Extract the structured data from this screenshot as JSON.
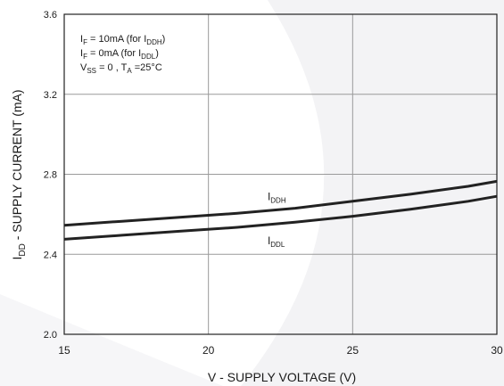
{
  "chart_data": {
    "type": "line",
    "xlabel": "V - SUPPLY VOLTAGE (V)",
    "ylabel": {
      "main": "I",
      "sub": "DD",
      "rest": " - SUPPLY CURRENT (mA)"
    },
    "xlim": [
      15,
      30
    ],
    "ylim": [
      2.0,
      3.6
    ],
    "x_ticks": [
      15,
      20,
      25,
      30
    ],
    "x_tick_labels": [
      "15",
      "20",
      "25",
      "30"
    ],
    "y_ticks": [
      2.0,
      2.4,
      2.8,
      3.2,
      3.6
    ],
    "y_tick_labels": [
      "2.0",
      "2.4",
      "2.8",
      "3.2",
      "3.6"
    ],
    "grid": true,
    "series": [
      {
        "name": "IDDH",
        "label": {
          "main": "I",
          "sub": "DDH"
        },
        "color": "#222222",
        "x": [
          15,
          17,
          19,
          21,
          23,
          25,
          27,
          29,
          30
        ],
        "y": [
          2.545,
          2.565,
          2.585,
          2.605,
          2.63,
          2.665,
          2.7,
          2.74,
          2.765
        ]
      },
      {
        "name": "IDDL",
        "label": {
          "main": "I",
          "sub": "DDL"
        },
        "color": "#222222",
        "x": [
          15,
          17,
          19,
          21,
          23,
          25,
          27,
          29,
          30
        ],
        "y": [
          2.475,
          2.495,
          2.515,
          2.535,
          2.56,
          2.59,
          2.625,
          2.665,
          2.69
        ]
      }
    ],
    "conditions": [
      {
        "parts": [
          {
            "t": "I"
          },
          {
            "s": "F"
          },
          {
            "t": " = 10mA (for I"
          },
          {
            "s": "DDH"
          },
          {
            "t": ")"
          }
        ]
      },
      {
        "parts": [
          {
            "t": "I"
          },
          {
            "s": "F"
          },
          {
            "t": " = 0mA (for I"
          },
          {
            "s": "DDL"
          },
          {
            "t": ")"
          }
        ]
      },
      {
        "parts": [
          {
            "t": "V"
          },
          {
            "s": "SS"
          },
          {
            "t": " = 0 , T"
          },
          {
            "s": "A"
          },
          {
            "t": " =25°C"
          }
        ]
      }
    ]
  }
}
